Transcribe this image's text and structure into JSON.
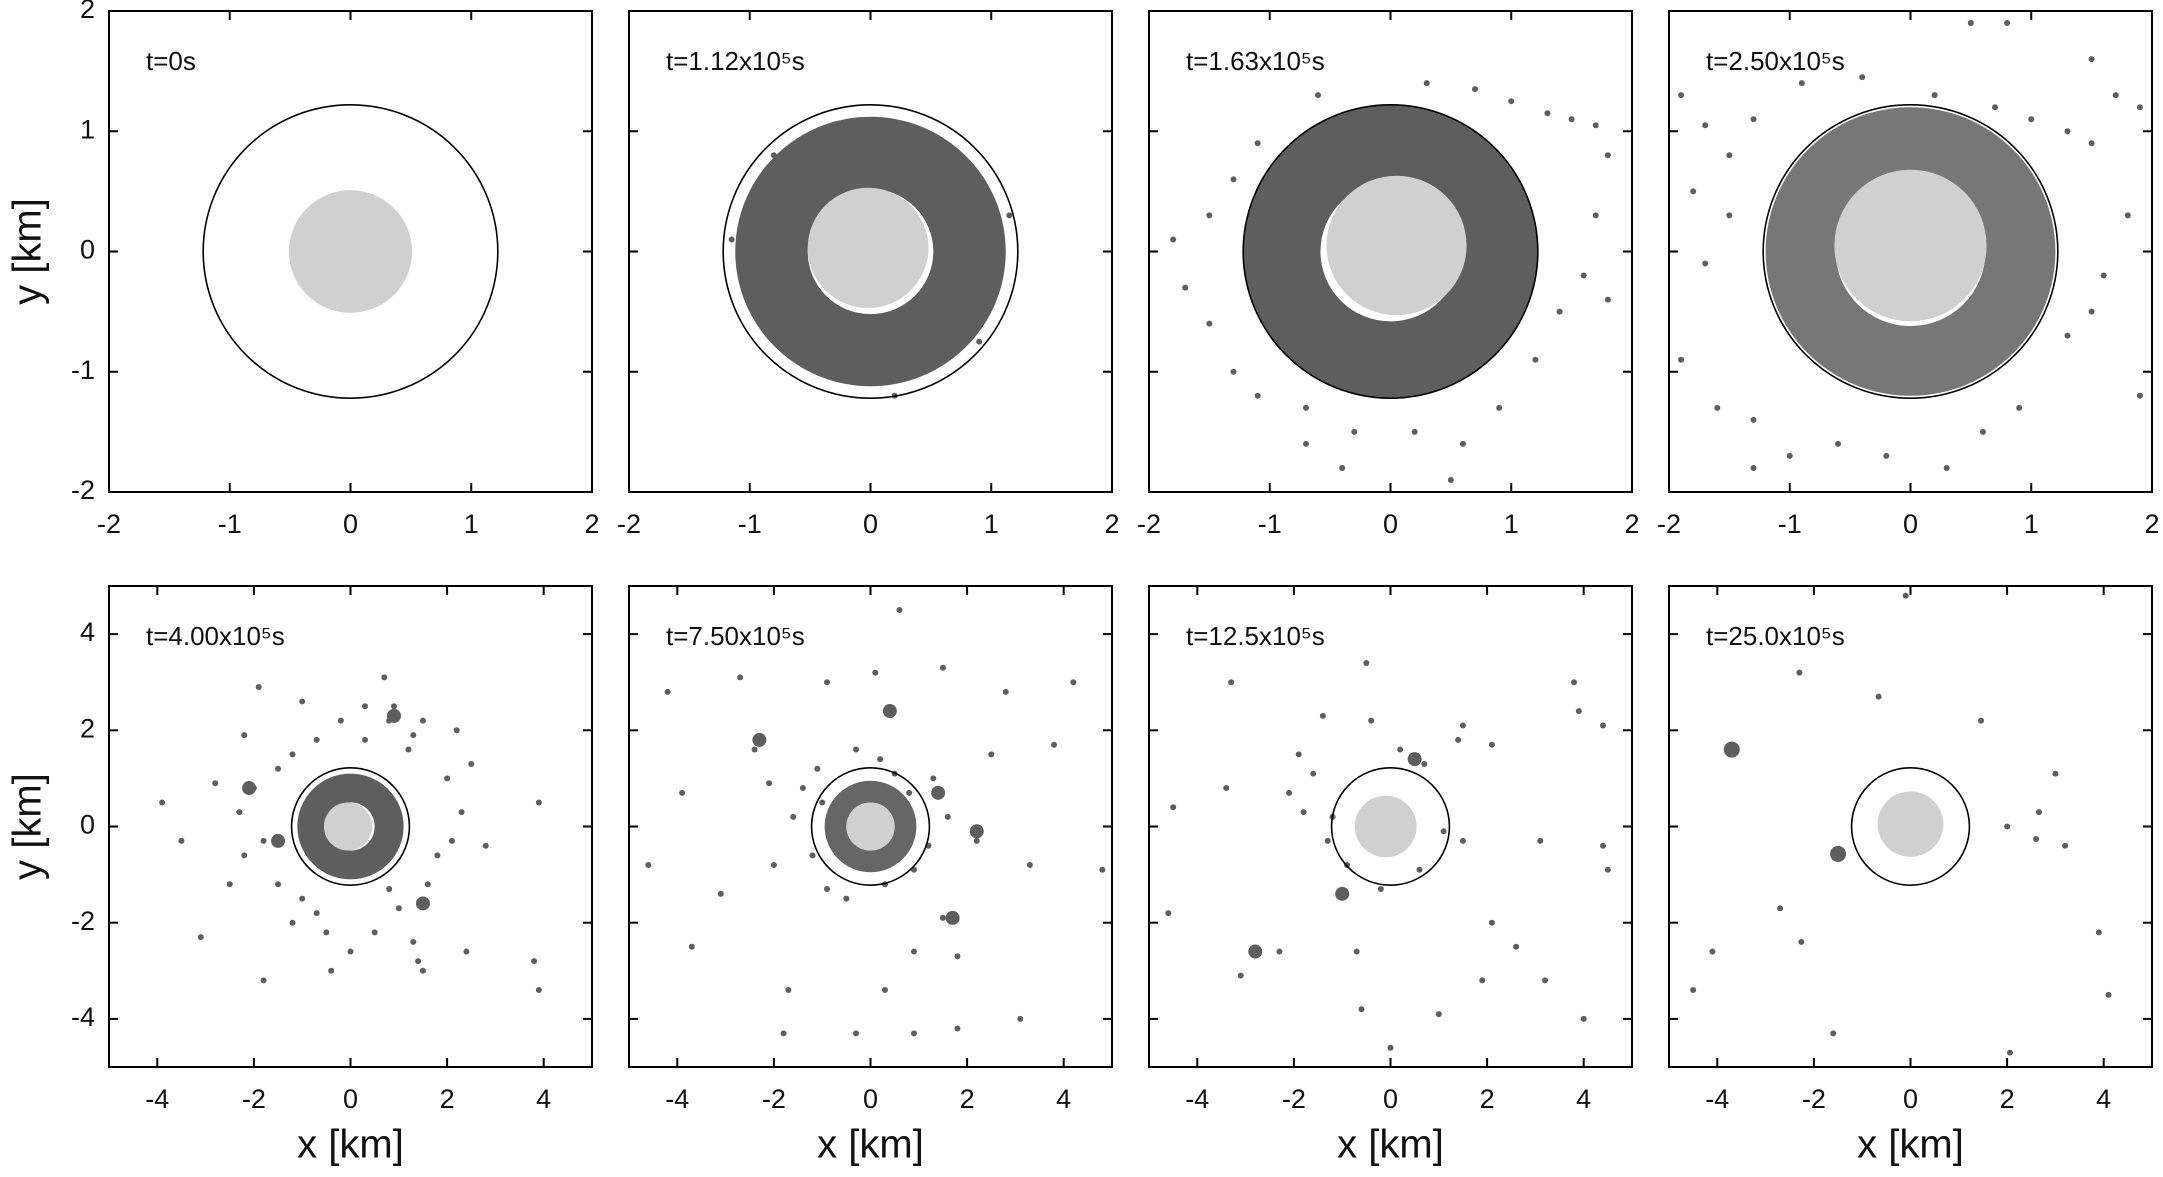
{
  "chart_data": [
    {
      "type": "scatter",
      "annotation": "t=0s",
      "y_label": "y [km]",
      "show_ytick_labels": true,
      "xlim": [
        -2,
        2
      ],
      "ylim": [
        -2,
        2
      ],
      "xticks": [
        -2,
        -1,
        0,
        1,
        2
      ],
      "yticks": [
        -2,
        -1,
        0,
        1,
        2
      ],
      "circle_r": 1.22,
      "disk": {
        "cx": 0,
        "cy": 0,
        "r": 0.51,
        "color": "#d0d0d0"
      }
    },
    {
      "type": "scatter",
      "annotation": "t=1.12x10⁵s",
      "show_ytick_labels": false,
      "xlim": [
        -2,
        2
      ],
      "ylim": [
        -2,
        2
      ],
      "xticks": [
        -2,
        -1,
        0,
        1,
        2
      ],
      "yticks": [
        -2,
        -1,
        0,
        1,
        2
      ],
      "circle_r": 1.22,
      "ring": {
        "inner": 0.52,
        "outer": 1.12,
        "color": "#5e5e5e"
      },
      "disk": {
        "cx": -0.02,
        "cy": 0.03,
        "r": 0.5,
        "color": "#d0d0d0"
      },
      "series": [
        {
          "color": "#5e5e5e",
          "size": 3,
          "x": [
            1.15,
            -1.15,
            0.2,
            0.9,
            -0.8
          ],
          "y": [
            0.3,
            0.1,
            -1.2,
            -0.75,
            0.8
          ]
        }
      ]
    },
    {
      "type": "scatter",
      "annotation": "t=1.63x10⁵s",
      "show_ytick_labels": false,
      "xlim": [
        -2,
        2
      ],
      "ylim": [
        -2,
        2
      ],
      "xticks": [
        -2,
        -1,
        0,
        1,
        2
      ],
      "yticks": [
        -2,
        -1,
        0,
        1,
        2
      ],
      "circle_r": 1.22,
      "ring": {
        "inner": 0.58,
        "outer": 1.22,
        "color": "#5e5e5e"
      },
      "disk": {
        "cx": 0.05,
        "cy": 0.05,
        "r": 0.58,
        "color": "#d0d0d0"
      },
      "series": [
        {
          "color": "#5e5e5e",
          "size": 3,
          "x": [
            0.3,
            0.7,
            1.0,
            1.3,
            1.5,
            1.7,
            1.8,
            -0.6,
            -1.1,
            -1.3,
            -1.5,
            -1.8,
            -1.7,
            -1.5,
            -1.3,
            -1.1,
            -0.7,
            -0.3,
            0.2,
            0.6,
            0.9,
            1.2,
            1.4,
            1.6,
            1.7,
            1.8,
            -0.7,
            -0.4,
            0.5
          ],
          "y": [
            1.4,
            1.35,
            1.25,
            1.15,
            1.1,
            1.05,
            0.8,
            1.3,
            0.9,
            0.6,
            0.3,
            0.1,
            -0.3,
            -0.6,
            -1.0,
            -1.2,
            -1.3,
            -1.5,
            -1.5,
            -1.6,
            -1.3,
            -0.9,
            -0.5,
            -0.2,
            0.3,
            -0.4,
            -1.6,
            -1.8,
            -1.9
          ]
        }
      ]
    },
    {
      "type": "scatter",
      "annotation": "t=2.50x10⁵s",
      "show_ytick_labels": false,
      "xlim": [
        -2,
        2
      ],
      "ylim": [
        -2,
        2
      ],
      "xticks": [
        -2,
        -1,
        0,
        1,
        2
      ],
      "yticks": [
        -2,
        -1,
        0,
        1,
        2
      ],
      "circle_r": 1.22,
      "ring": {
        "inner": 0.62,
        "outer": 1.2,
        "color": "#777777"
      },
      "disk": {
        "cx": 0.0,
        "cy": 0.05,
        "r": 0.63,
        "color": "#d0d0d0"
      },
      "series": [
        {
          "color": "#5e5e5e",
          "size": 3,
          "x": [
            -1.9,
            -1.7,
            -1.5,
            -1.3,
            -0.9,
            -0.4,
            0.2,
            0.7,
            1.0,
            1.3,
            1.5,
            1.7,
            1.9,
            1.5,
            0.5,
            -1.5,
            -1.7,
            -1.9,
            -1.6,
            -1.3,
            -1.0,
            -0.6,
            -0.2,
            0.3,
            0.6,
            0.9,
            1.3,
            1.5,
            1.6,
            1.8,
            1.9,
            -1.3,
            0.8,
            -1.8
          ],
          "y": [
            1.3,
            1.05,
            0.8,
            1.1,
            1.4,
            1.45,
            1.3,
            1.2,
            1.1,
            1.0,
            0.9,
            1.3,
            1.2,
            1.6,
            1.9,
            0.3,
            -0.1,
            -0.9,
            -1.3,
            -1.4,
            -1.7,
            -1.6,
            -1.7,
            -1.8,
            -1.5,
            -1.3,
            -0.7,
            -0.5,
            -0.2,
            0.3,
            -1.2,
            -1.8,
            1.9,
            0.5
          ]
        }
      ]
    },
    {
      "type": "scatter",
      "annotation": "t=4.00x10⁵s",
      "x_label": "x [km]",
      "y_label": "y [km]",
      "show_ytick_labels": true,
      "xlim": [
        -5,
        5
      ],
      "ylim": [
        -5,
        5
      ],
      "xticks": [
        -4,
        -2,
        0,
        2,
        4
      ],
      "yticks": [
        -4,
        -2,
        0,
        2,
        4
      ],
      "circle_r": 1.22,
      "ring": {
        "inner": 0.5,
        "outer": 1.1,
        "color": "#5e5e5e"
      },
      "disk": {
        "cx": -0.05,
        "cy": 0.0,
        "r": 0.5,
        "color": "#d0d0d0"
      },
      "series": [
        {
          "color": "#5e5e5e",
          "size": 3,
          "x": [
            -1.5,
            -1.2,
            -0.7,
            -0.2,
            0.3,
            0.8,
            1.2,
            0.3,
            0.9,
            1.5,
            -2.0,
            -2.3,
            -1.8,
            -2.2,
            -1.5,
            -1.0,
            -0.7,
            -0.5,
            0.0,
            0.5,
            1.0,
            1.3,
            1.6,
            1.8,
            2.1,
            2.3,
            2.0,
            2.5,
            2.8,
            -2.8,
            -3.1,
            -3.9,
            -3.5,
            -1.9,
            0.7,
            2.4,
            3.8,
            3.9,
            3.9,
            -1.8,
            -0.4,
            1.4,
            -2.2,
            2.2,
            1.3,
            -1.0,
            0.8,
            -1.2,
            -2.5,
            1.5
          ],
          "y": [
            1.2,
            1.5,
            1.8,
            2.2,
            2.5,
            2.2,
            1.6,
            1.8,
            2.5,
            2.2,
            0.8,
            0.3,
            -0.3,
            -0.6,
            -1.2,
            -1.5,
            -1.8,
            -2.2,
            -2.6,
            -2.2,
            -1.7,
            -2.4,
            -1.2,
            -0.6,
            -0.3,
            0.3,
            1.0,
            1.3,
            -0.4,
            0.9,
            -2.3,
            0.5,
            -0.3,
            2.9,
            3.1,
            -2.6,
            -2.8,
            -3.4,
            0.5,
            -3.2,
            -3.0,
            -2.8,
            1.9,
            2.0,
            1.9,
            2.6,
            -1.3,
            -2.0,
            -1.2,
            -3.0
          ]
        },
        {
          "color": "#5e5e5e",
          "size": 7,
          "x": [
            -2.1,
            0.9,
            -1.5,
            1.5
          ],
          "y": [
            0.8,
            2.3,
            -0.3,
            -1.6
          ]
        }
      ]
    },
    {
      "type": "scatter",
      "annotation": "t=7.50x10⁵s",
      "x_label": "x [km]",
      "show_ytick_labels": false,
      "xlim": [
        -5,
        5
      ],
      "ylim": [
        -5,
        5
      ],
      "xticks": [
        -4,
        -2,
        0,
        2,
        4
      ],
      "yticks": [
        -4,
        -2,
        0,
        2,
        4
      ],
      "circle_r": 1.22,
      "ring": {
        "inner": 0.5,
        "outer": 0.95,
        "color": "#666666"
      },
      "disk": {
        "cx": 0.0,
        "cy": 0.0,
        "r": 0.5,
        "color": "#d0d0d0"
      },
      "series": [
        {
          "color": "#5e5e5e",
          "size": 3,
          "x": [
            -2.4,
            -2.7,
            -0.9,
            0.1,
            0.6,
            1.5,
            2.8,
            4.2,
            3.8,
            2.5,
            1.3,
            1.6,
            2.2,
            3.3,
            4.8,
            1.5,
            1.8,
            0.9,
            0.3,
            -0.3,
            0.9,
            1.8,
            3.1,
            -1.7,
            -1.8,
            -3.1,
            -3.7,
            -4.6,
            -3.9,
            -4.2,
            -1.1,
            -1.4,
            -1.2,
            -0.9,
            -0.5,
            0.3,
            0.9,
            1.2,
            0.8,
            0.2,
            -0.3,
            -1.6,
            -2.0,
            -2.1,
            0.5,
            -1.0
          ],
          "y": [
            1.6,
            3.1,
            3.0,
            3.2,
            4.5,
            3.3,
            2.8,
            3.0,
            1.7,
            1.5,
            1.0,
            0.2,
            -0.3,
            -0.8,
            -0.9,
            -1.9,
            -2.7,
            -2.6,
            -3.4,
            -4.3,
            -4.3,
            -4.2,
            -4.0,
            -3.4,
            -4.3,
            -1.4,
            -2.5,
            -0.8,
            0.7,
            2.8,
            1.2,
            0.8,
            -0.6,
            -1.3,
            -1.5,
            -1.2,
            -0.9,
            -0.4,
            0.7,
            1.4,
            1.6,
            0.2,
            -0.8,
            0.9,
            1.1,
            0.5
          ]
        },
        {
          "color": "#5e5e5e",
          "size": 7,
          "x": [
            -2.3,
            1.4,
            1.7,
            2.2,
            0.4
          ],
          "y": [
            1.8,
            0.7,
            -1.9,
            -0.1,
            2.4
          ]
        }
      ]
    },
    {
      "type": "scatter",
      "annotation": "t=12.5x10⁵s",
      "x_label": "x [km]",
      "show_ytick_labels": false,
      "xlim": [
        -5,
        5
      ],
      "ylim": [
        -5,
        5
      ],
      "xticks": [
        -4,
        -2,
        0,
        2,
        4
      ],
      "yticks": [
        -4,
        -2,
        0,
        2,
        4
      ],
      "circle_r": 1.22,
      "disk": {
        "cx": -0.1,
        "cy": 0.0,
        "r": 0.64,
        "color": "#d0d0d0"
      },
      "series": [
        {
          "color": "#5e5e5e",
          "size": 3,
          "x": [
            -3.3,
            -2.1,
            -1.8,
            -1.4,
            -0.4,
            -1.6,
            0.2,
            0.7,
            1.5,
            2.1,
            3.8,
            3.9,
            4.4,
            3.1,
            4.4,
            4.5,
            1.5,
            1.1,
            -1.3,
            -1.2,
            -0.9,
            0.6,
            -0.2,
            2.1,
            2.6,
            1.9,
            3.2,
            4.0,
            -0.7,
            -2.3,
            -3.1,
            -4.6,
            -3.4,
            -4.5,
            -0.6,
            1.0,
            0.0,
            -1.9,
            1.4,
            -0.5
          ],
          "y": [
            3.0,
            0.7,
            0.3,
            2.3,
            2.2,
            1.1,
            1.6,
            1.3,
            2.1,
            1.7,
            3.0,
            2.4,
            2.1,
            -0.3,
            -0.4,
            -0.9,
            -0.3,
            -0.1,
            -0.3,
            0.2,
            -0.8,
            -0.9,
            -1.3,
            -2.0,
            -2.5,
            -3.2,
            -3.2,
            -4.0,
            -2.6,
            -2.6,
            -3.1,
            -1.8,
            0.8,
            0.4,
            -3.8,
            -3.9,
            -4.6,
            1.5,
            1.8,
            3.4
          ]
        },
        {
          "color": "#5e5e5e",
          "size": 7,
          "x": [
            -2.8,
            -1.0,
            0.5
          ],
          "y": [
            -2.6,
            -1.4,
            1.4
          ]
        }
      ]
    },
    {
      "type": "scatter",
      "annotation": "t=25.0x10⁵s",
      "x_label": "x [km]",
      "show_ytick_labels": false,
      "xlim": [
        -5,
        5
      ],
      "ylim": [
        -5,
        5
      ],
      "xticks": [
        -4,
        -2,
        0,
        2,
        4
      ],
      "yticks": [
        -4,
        -2,
        0,
        2,
        4
      ],
      "circle_r": 1.22,
      "disk": {
        "cx": 0.0,
        "cy": 0.05,
        "r": 0.68,
        "color": "#d0d0d0"
      },
      "series": [
        {
          "color": "#5e5e5e",
          "size": 3,
          "x": [
            -2.3,
            -0.66,
            1.46,
            3.0,
            2.66,
            2.0,
            2.6,
            3.2,
            -2.7,
            -2.26,
            -4.1,
            -4.5,
            -1.6,
            3.9,
            4.1,
            2.06,
            -0.1
          ],
          "y": [
            3.2,
            2.7,
            2.2,
            1.1,
            0.3,
            0.0,
            -0.26,
            -0.4,
            -1.7,
            -2.4,
            -2.6,
            -3.4,
            -4.3,
            -2.2,
            -3.5,
            -4.7,
            4.8
          ]
        },
        {
          "color": "#5e5e5e",
          "size": 8,
          "x": [
            -3.7,
            -1.5
          ],
          "y": [
            1.6,
            -0.57
          ]
        }
      ]
    }
  ]
}
